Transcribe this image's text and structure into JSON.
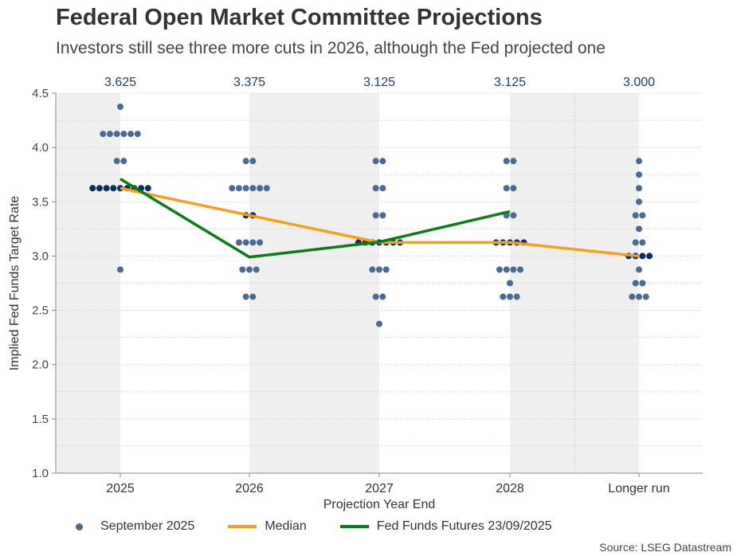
{
  "title": "Federal Open Market Committee Projections",
  "subtitle": "Investors still see three more cuts in 2026, although the Fed projected one",
  "source": "Source: LSEG Datastream",
  "chart_data": {
    "type": "scatter",
    "xlabel": "Projection Year End",
    "ylabel": "Implied Fed Funds Target Rate",
    "ylim": [
      1.0,
      4.5
    ],
    "yticks": [
      "1.0",
      "1.5",
      "2.0",
      "2.5",
      "3.0",
      "3.5",
      "4.0",
      "4.5"
    ],
    "categories": [
      "2025",
      "2026",
      "2027",
      "2028",
      "Longer run"
    ],
    "median_labels": [
      "3.625",
      "3.375",
      "3.125",
      "3.125",
      "3.000"
    ],
    "grid": "horizontal dotted",
    "legend_placement": "bottom",
    "colors": {
      "dots": "#4a6a94",
      "median_dots": "#0f2d5e",
      "median": "#f5a01a",
      "futures": "#0a7d1a",
      "band": "#efefef"
    },
    "dots": [
      [
        {
          "rate": 4.375,
          "count": 1
        },
        {
          "rate": 4.125,
          "count": 6
        },
        {
          "rate": 3.875,
          "count": 2
        },
        {
          "rate": 3.625,
          "count": 9
        },
        {
          "rate": 2.875,
          "count": 1
        }
      ],
      [
        {
          "rate": 3.875,
          "count": 2
        },
        {
          "rate": 3.625,
          "count": 6
        },
        {
          "rate": 3.375,
          "count": 2
        },
        {
          "rate": 3.125,
          "count": 4
        },
        {
          "rate": 2.875,
          "count": 3
        },
        {
          "rate": 2.625,
          "count": 2
        }
      ],
      [
        {
          "rate": 3.875,
          "count": 2
        },
        {
          "rate": 3.625,
          "count": 2
        },
        {
          "rate": 3.375,
          "count": 2
        },
        {
          "rate": 3.125,
          "count": 7
        },
        {
          "rate": 2.875,
          "count": 3
        },
        {
          "rate": 2.625,
          "count": 2
        },
        {
          "rate": 2.375,
          "count": 1
        }
      ],
      [
        {
          "rate": 3.875,
          "count": 2
        },
        {
          "rate": 3.625,
          "count": 2
        },
        {
          "rate": 3.375,
          "count": 2
        },
        {
          "rate": 3.125,
          "count": 5
        },
        {
          "rate": 2.875,
          "count": 4
        },
        {
          "rate": 2.75,
          "count": 1
        },
        {
          "rate": 2.625,
          "count": 3
        }
      ],
      [
        {
          "rate": 3.875,
          "count": 1
        },
        {
          "rate": 3.75,
          "count": 1
        },
        {
          "rate": 3.625,
          "count": 1
        },
        {
          "rate": 3.5,
          "count": 1
        },
        {
          "rate": 3.375,
          "count": 2
        },
        {
          "rate": 3.25,
          "count": 1
        },
        {
          "rate": 3.125,
          "count": 2
        },
        {
          "rate": 3.0,
          "count": 4
        },
        {
          "rate": 2.875,
          "count": 1
        },
        {
          "rate": 2.75,
          "count": 2
        },
        {
          "rate": 2.625,
          "count": 3
        }
      ]
    ],
    "series": [
      {
        "name": "September 2025"
      },
      {
        "name": "Median",
        "values": [
          3.625,
          3.375,
          3.125,
          3.125,
          3.0
        ]
      },
      {
        "name": "Fed Funds Futures 23/09/2025",
        "values": [
          3.71,
          2.99,
          3.13,
          3.41,
          null
        ]
      }
    ]
  }
}
